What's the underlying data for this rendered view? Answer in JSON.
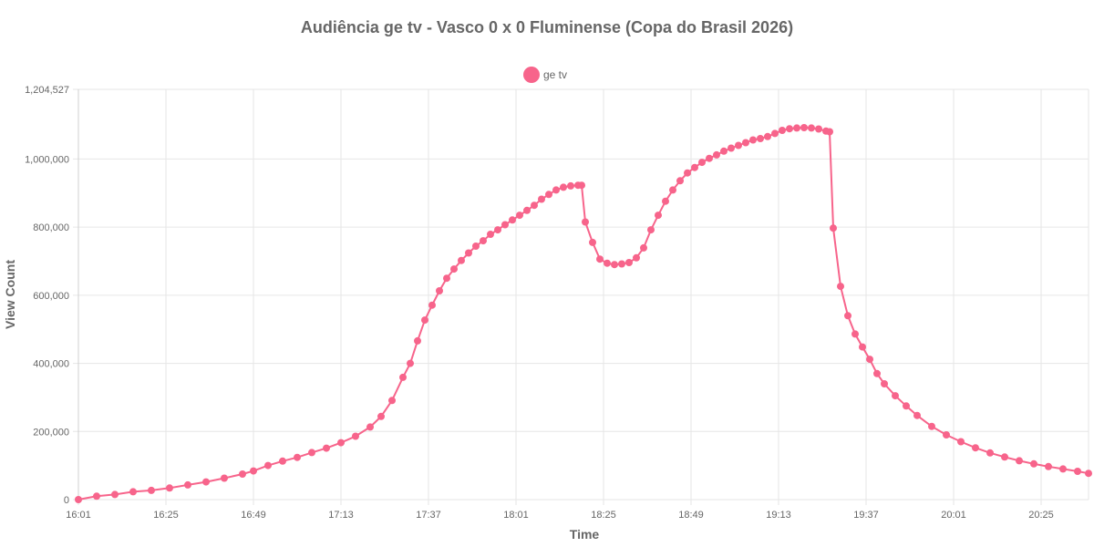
{
  "chart_data": {
    "type": "line",
    "title": "Audiência ge tv - Vasco 0 x 0 Fluminense (Copa do Brasil 2026)",
    "xlabel": "Time",
    "ylabel": "View Count",
    "x_tick_labels": [
      "16:01",
      "16:25",
      "16:49",
      "17:13",
      "17:37",
      "18:01",
      "18:25",
      "18:49",
      "19:13",
      "19:37",
      "20:01",
      "20:25"
    ],
    "y_tick_labels": [
      "0",
      "200,000",
      "400,000",
      "600,000",
      "800,000",
      "1,000,000",
      "1,204,527"
    ],
    "ylim": [
      0,
      1204527
    ],
    "x_range_minutes_from_first_tick": [
      0,
      277
    ],
    "grid": true,
    "legend_position": "top-center",
    "series": [
      {
        "name": "ge tv",
        "color": "#f7648b",
        "points": [
          [
            0,
            0
          ],
          [
            5,
            10000
          ],
          [
            10,
            15000
          ],
          [
            15,
            23000
          ],
          [
            20,
            27000
          ],
          [
            25,
            34000
          ],
          [
            30,
            43000
          ],
          [
            35,
            52000
          ],
          [
            40,
            63000
          ],
          [
            45,
            75000
          ],
          [
            48,
            84000
          ],
          [
            52,
            100000
          ],
          [
            56,
            113000
          ],
          [
            60,
            124000
          ],
          [
            64,
            138000
          ],
          [
            68,
            151000
          ],
          [
            72,
            167000
          ],
          [
            76,
            186000
          ],
          [
            80,
            213000
          ],
          [
            83,
            244000
          ],
          [
            86,
            291000
          ],
          [
            89,
            359000
          ],
          [
            91,
            400000
          ],
          [
            93,
            466000
          ],
          [
            95,
            527000
          ],
          [
            97,
            571000
          ],
          [
            99,
            613000
          ],
          [
            101,
            650000
          ],
          [
            103,
            677000
          ],
          [
            105,
            702000
          ],
          [
            107,
            724000
          ],
          [
            109,
            744000
          ],
          [
            111,
            760000
          ],
          [
            113,
            779000
          ],
          [
            115,
            792000
          ],
          [
            117,
            807000
          ],
          [
            119,
            821000
          ],
          [
            121,
            835000
          ],
          [
            123,
            849000
          ],
          [
            125,
            864000
          ],
          [
            127,
            882000
          ],
          [
            129,
            896000
          ],
          [
            131,
            909000
          ],
          [
            133,
            917000
          ],
          [
            135,
            921000
          ],
          [
            137,
            923000
          ],
          [
            138,
            923000
          ],
          [
            139,
            815000
          ],
          [
            141,
            755000
          ],
          [
            143,
            706000
          ],
          [
            145,
            694000
          ],
          [
            147,
            690000
          ],
          [
            149,
            692000
          ],
          [
            151,
            696000
          ],
          [
            153,
            710000
          ],
          [
            155,
            739000
          ],
          [
            157,
            792000
          ],
          [
            159,
            835000
          ],
          [
            161,
            876000
          ],
          [
            163,
            909000
          ],
          [
            165,
            936000
          ],
          [
            167,
            959000
          ],
          [
            169,
            975000
          ],
          [
            171,
            990000
          ],
          [
            173,
            1002000
          ],
          [
            175,
            1012000
          ],
          [
            177,
            1023000
          ],
          [
            179,
            1032000
          ],
          [
            181,
            1040000
          ],
          [
            183,
            1048000
          ],
          [
            185,
            1056000
          ],
          [
            187,
            1060000
          ],
          [
            189,
            1066000
          ],
          [
            191,
            1075000
          ],
          [
            193,
            1084000
          ],
          [
            195,
            1089000
          ],
          [
            197,
            1091000
          ],
          [
            199,
            1092000
          ],
          [
            201,
            1091000
          ],
          [
            203,
            1088000
          ],
          [
            205,
            1082000
          ],
          [
            206,
            1080000
          ],
          [
            207,
            797000
          ],
          [
            209,
            626000
          ],
          [
            211,
            540000
          ],
          [
            213,
            486000
          ],
          [
            215,
            448000
          ],
          [
            217,
            412000
          ],
          [
            219,
            370000
          ],
          [
            221,
            340000
          ],
          [
            224,
            305000
          ],
          [
            227,
            275000
          ],
          [
            230,
            247000
          ],
          [
            234,
            215000
          ],
          [
            238,
            190000
          ],
          [
            242,
            170000
          ],
          [
            246,
            152000
          ],
          [
            250,
            137000
          ],
          [
            254,
            125000
          ],
          [
            258,
            114000
          ],
          [
            262,
            105000
          ],
          [
            266,
            97000
          ],
          [
            270,
            90000
          ],
          [
            274,
            83000
          ],
          [
            277,
            77000
          ]
        ]
      }
    ]
  }
}
